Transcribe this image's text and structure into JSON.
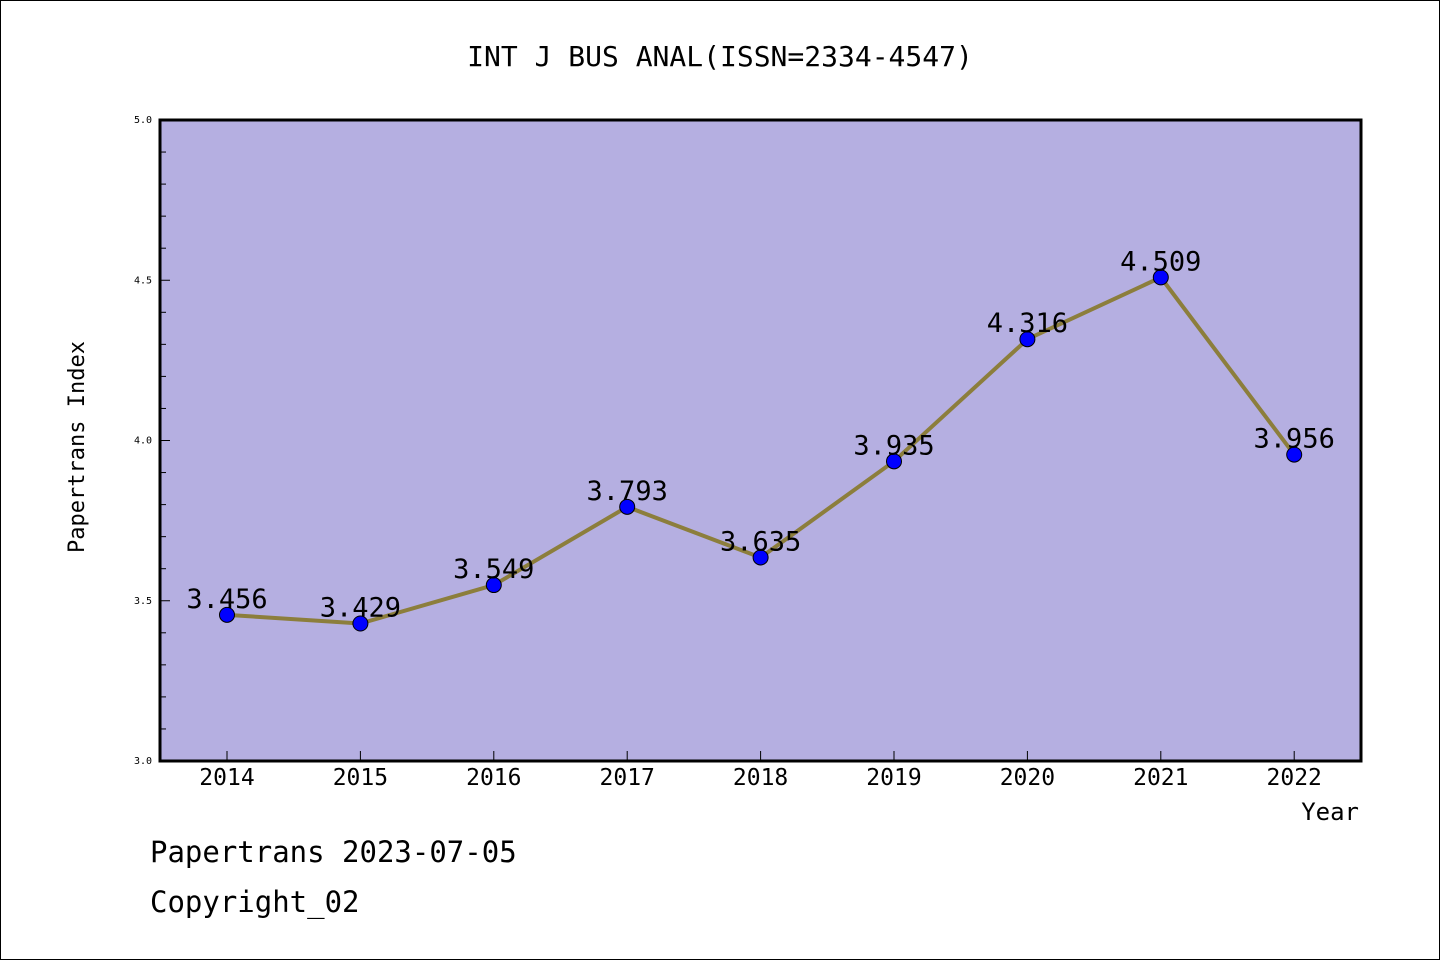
{
  "chart_data": {
    "type": "line",
    "title": "INT J BUS ANAL(ISSN=2334-4547)",
    "xlabel": "Year",
    "ylabel": "Papertrans Index",
    "categories": [
      "2014",
      "2015",
      "2016",
      "2017",
      "2018",
      "2019",
      "2020",
      "2021",
      "2022"
    ],
    "values": [
      3.456,
      3.429,
      3.549,
      3.793,
      3.635,
      3.935,
      4.316,
      4.509,
      3.956
    ],
    "value_labels": [
      "3.456",
      "3.429",
      "3.549",
      "3.793",
      "3.635",
      "3.935",
      "4.316",
      "4.509",
      "3.956"
    ],
    "ylim": [
      3.0,
      5.0
    ],
    "yticks": [
      "3.0",
      "3.5",
      "4.0",
      "4.5",
      "5.0"
    ],
    "grid": false,
    "legend": "none",
    "colors": {
      "plot_background": "#b5afe1",
      "line": "#8c7e3c",
      "marker": "#0000ff"
    }
  },
  "footer": {
    "date_line": "Papertrans 2023-07-05",
    "copyright_line": "Copyright_02"
  }
}
